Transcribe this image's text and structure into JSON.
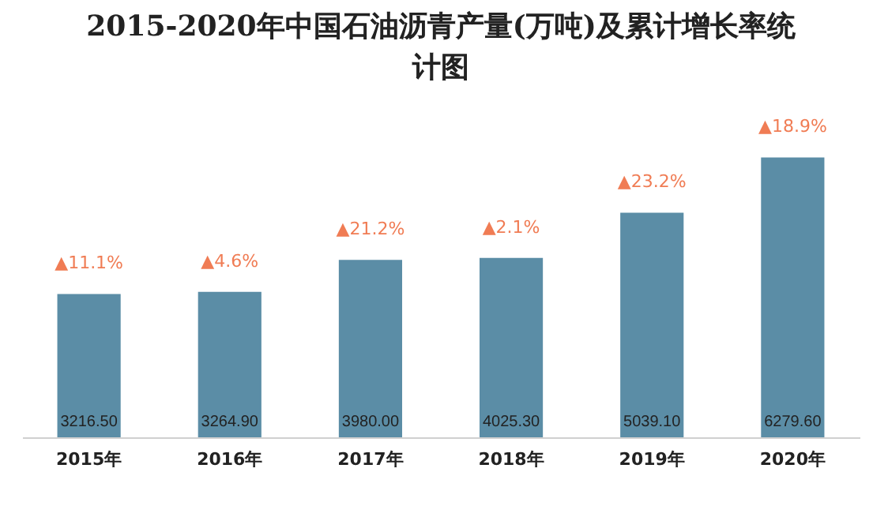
{
  "chart_data": {
    "type": "bar",
    "title": "2015-2020年中国石油沥青产量(万吨)及累计增长率统计图",
    "categories": [
      "2015年",
      "2016年",
      "2017年",
      "2018年",
      "2019年",
      "2020年"
    ],
    "values": [
      3216.5,
      3264.9,
      3980.0,
      4025.3,
      5039.1,
      6279.6
    ],
    "value_labels": [
      "3216.50",
      "3264.90",
      "3980.00",
      "4025.30",
      "5039.10",
      "6279.60"
    ],
    "color": "#5b8da6",
    "tick_labels": "x",
    "annotations": [
      "▲11.1%",
      "▲4.6%",
      "▲21.2%",
      "▲2.1%",
      "▲23.2%",
      "▲18.9%"
    ]
  }
}
